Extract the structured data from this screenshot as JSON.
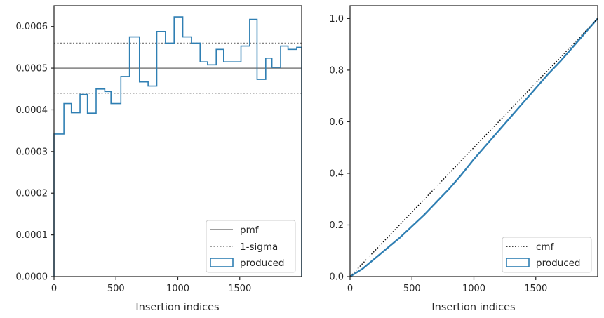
{
  "colors": {
    "produced": "#2f7fb3",
    "pmf": "#7f7f7f",
    "sigma": "#7f7f7f",
    "cmf": "#000000",
    "axis": "#262626"
  },
  "chart_data": [
    {
      "type": "histogram",
      "xlabel": "Insertion indices",
      "ylabel": "",
      "xlim": [
        0,
        2000
      ],
      "ylim": [
        0,
        0.00065
      ],
      "xticks": [
        0,
        500,
        1000,
        1500
      ],
      "xtick_labels": [
        "0",
        "500",
        "1000",
        "1500"
      ],
      "yticks": [
        0,
        0.0001,
        0.0002,
        0.0003,
        0.0004,
        0.0005,
        0.0006
      ],
      "ytick_labels": [
        "0.0000",
        "0.0001",
        "0.0002",
        "0.0003",
        "0.0004",
        "0.0005",
        "0.0006"
      ],
      "grid": false,
      "legend_position": "lower-right",
      "legend": [
        "pmf",
        "1-sigma",
        "produced"
      ],
      "pmf": 0.0005,
      "sigma_band": [
        0.00044,
        0.00056
      ],
      "bin_edges": [
        0,
        80,
        140,
        210,
        270,
        340,
        410,
        460,
        540,
        610,
        690,
        760,
        830,
        900,
        970,
        1040,
        1110,
        1180,
        1240,
        1310,
        1370,
        1440,
        1510,
        1580,
        1640,
        1710,
        1760,
        1830,
        1890,
        1960,
        2000
      ],
      "series": [
        {
          "name": "produced",
          "values": [
            0.000342,
            0.000415,
            0.000393,
            0.000437,
            0.000392,
            0.00045,
            0.000444,
            0.000415,
            0.00048,
            0.000575,
            0.000467,
            0.000457,
            0.000588,
            0.00056,
            0.000623,
            0.000575,
            0.00056,
            0.000515,
            0.000508,
            0.000545,
            0.000515,
            0.000515,
            0.000553,
            0.000617,
            0.000473,
            0.000524,
            0.000502,
            0.000553,
            0.000545,
            0.00055
          ]
        }
      ]
    },
    {
      "type": "line",
      "xlabel": "Insertion indices",
      "ylabel": "",
      "xlim": [
        0,
        2000
      ],
      "ylim": [
        0,
        1.05
      ],
      "xticks": [
        0,
        500,
        1000,
        1500
      ],
      "xtick_labels": [
        "0",
        "500",
        "1000",
        "1500"
      ],
      "yticks": [
        0,
        0.2,
        0.4,
        0.6,
        0.8,
        1.0
      ],
      "ytick_labels": [
        "0.0",
        "0.2",
        "0.4",
        "0.6",
        "0.8",
        "1.0"
      ],
      "grid": false,
      "legend_position": "lower-right",
      "legend": [
        "cmf",
        "produced"
      ],
      "series": [
        {
          "name": "cmf",
          "x": [
            0,
            2000
          ],
          "y": [
            0,
            1.0
          ]
        },
        {
          "name": "produced",
          "x": [
            0,
            100,
            200,
            300,
            400,
            500,
            600,
            700,
            800,
            900,
            1000,
            1100,
            1200,
            1300,
            1400,
            1500,
            1600,
            1700,
            1800,
            1900,
            2000
          ],
          "y": [
            0,
            0.03,
            0.07,
            0.11,
            0.15,
            0.195,
            0.24,
            0.29,
            0.34,
            0.395,
            0.455,
            0.51,
            0.565,
            0.62,
            0.675,
            0.73,
            0.785,
            0.835,
            0.89,
            0.945,
            1.0
          ]
        }
      ]
    }
  ]
}
